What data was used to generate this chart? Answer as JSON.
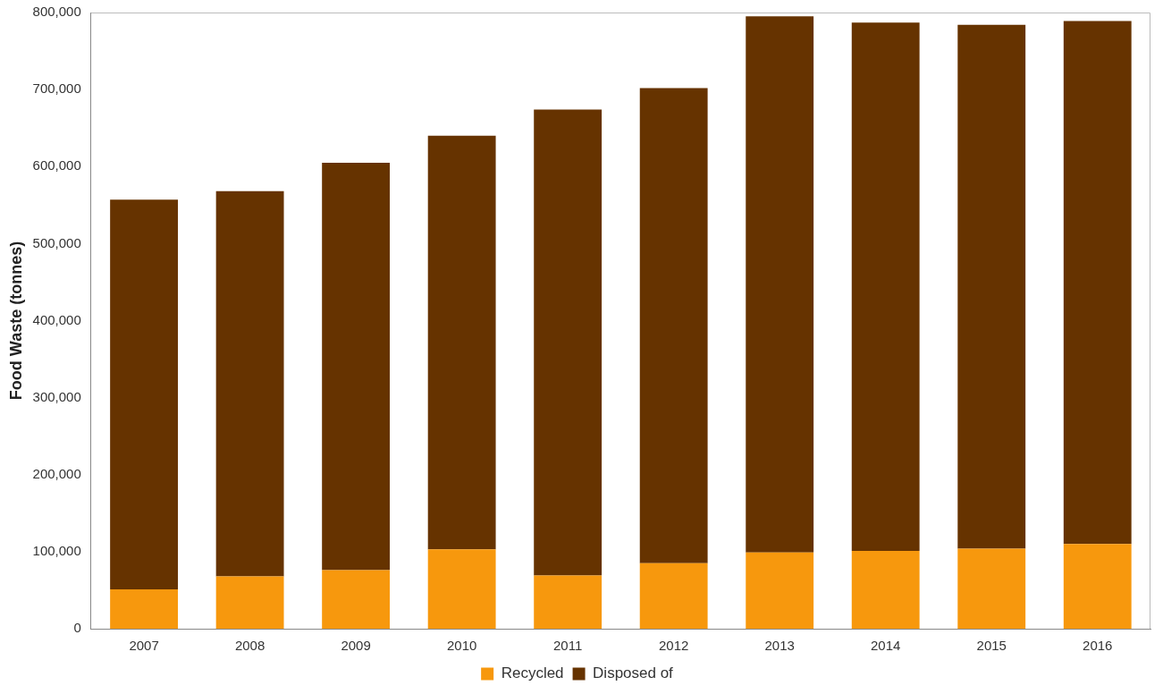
{
  "chart_data": {
    "type": "bar",
    "stacked": true,
    "ylabel": "Food Waste (tonnes)",
    "categories": [
      "2007",
      "2008",
      "2009",
      "2010",
      "2011",
      "2012",
      "2013",
      "2014",
      "2015",
      "2016"
    ],
    "series": [
      {
        "name": "Recycled",
        "color": "#f7980d",
        "values": [
          51000,
          68000,
          76000,
          103000,
          69000,
          85000,
          99000,
          101000,
          104000,
          110000
        ]
      },
      {
        "name": "Disposed of",
        "color": "#663300",
        "values": [
          506000,
          500000,
          529000,
          537000,
          605000,
          617000,
          696000,
          686000,
          680000,
          679000
        ]
      }
    ],
    "ylim": [
      0,
      800000
    ],
    "yticks": [
      0,
      {
        "value": 100000,
        "label": "100,000"
      },
      {
        "value": 200000,
        "label": "200,000"
      },
      {
        "value": 300000,
        "label": "300,000"
      },
      {
        "value": 400000,
        "label": "400,000"
      },
      {
        "value": 500000,
        "label": "500,000"
      },
      {
        "value": 600000,
        "label": "600,000"
      },
      {
        "value": 700000,
        "label": "700,000"
      },
      {
        "value": 800000,
        "label": "800,000"
      }
    ],
    "grid": false,
    "legend": "bottom"
  }
}
